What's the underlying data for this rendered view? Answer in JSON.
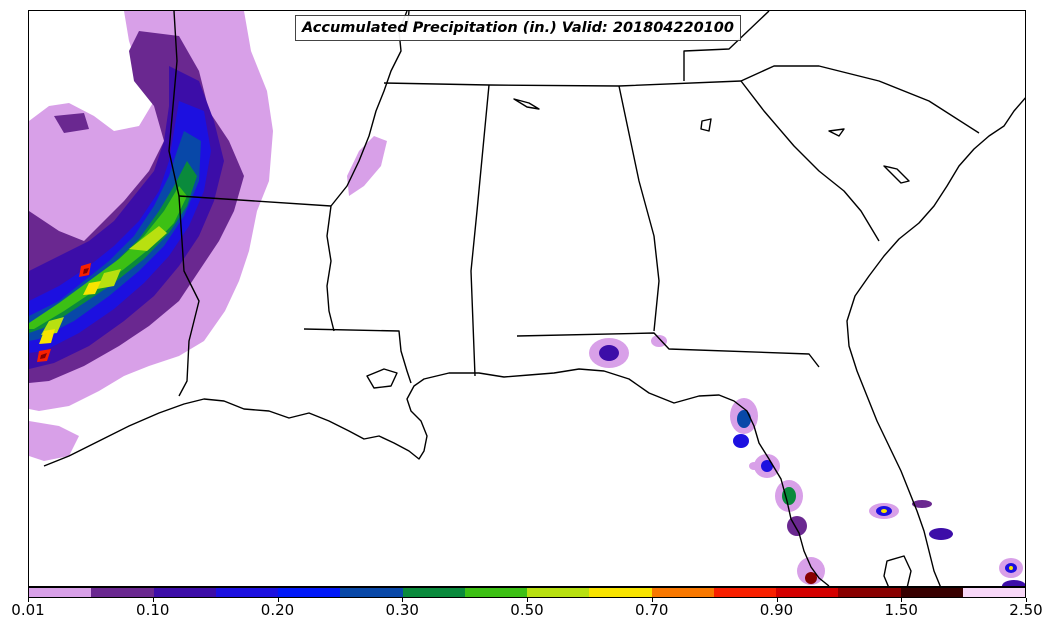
{
  "title": "Accumulated Precipitation (in.) Valid: 201804220100",
  "colorbar": {
    "colors": [
      "#d8a0e8",
      "#6a2890",
      "#3c0da8",
      "#1c10e0",
      "#0018f8",
      "#0848a8",
      "#0a8a3c",
      "#3cc014",
      "#b8e010",
      "#f8e400",
      "#f87800",
      "#f82000",
      "#d40000",
      "#880000",
      "#380000",
      "#f8d8f8"
    ],
    "labels": [
      {
        "index": 0,
        "text": "0.01"
      },
      {
        "index": 2,
        "text": "0.10"
      },
      {
        "index": 4,
        "text": "0.20"
      },
      {
        "index": 6,
        "text": "0.30"
      },
      {
        "index": 8,
        "text": "0.50"
      },
      {
        "index": 10,
        "text": "0.70"
      },
      {
        "index": 12,
        "text": "0.90"
      },
      {
        "index": 14,
        "text": "1.50"
      },
      {
        "index": 16,
        "text": "2.50"
      }
    ]
  }
}
